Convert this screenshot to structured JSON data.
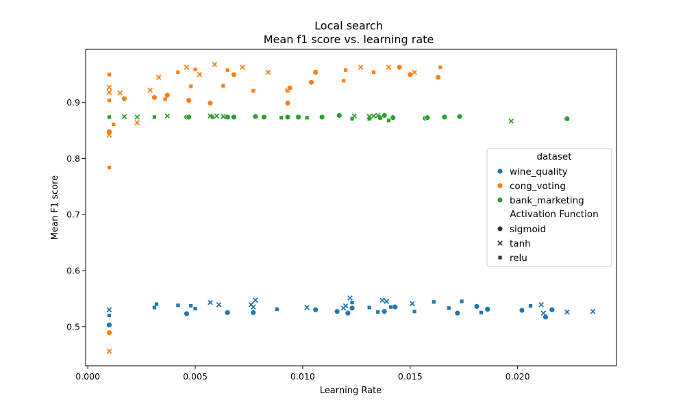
{
  "chart_data": {
    "type": "scatter",
    "title": "Local search",
    "subtitle": "Mean f1 score vs. learning rate",
    "xlabel": "Learning Rate",
    "ylabel": "Mean F1 score",
    "xlim": [
      -0.0001,
      0.0246
    ],
    "ylim": [
      0.43,
      0.995
    ],
    "xticks": [
      0.0,
      0.005,
      0.01,
      0.015,
      0.02
    ],
    "xtick_labels": [
      "0.000",
      "0.005",
      "0.010",
      "0.015",
      "0.020"
    ],
    "yticks": [
      0.5,
      0.6,
      0.7,
      0.8,
      0.9
    ],
    "ytick_labels": [
      "0.5",
      "0.6",
      "0.7",
      "0.8",
      "0.9"
    ],
    "grid": false,
    "legend": {
      "placement": "center-right",
      "hue_title": "dataset",
      "style_title": "Activation Function",
      "datasets": [
        {
          "name": "wine_quality",
          "color": "#1f77b4"
        },
        {
          "name": "cong_voting",
          "color": "#ff7f0e"
        },
        {
          "name": "bank_marketing",
          "color": "#2ca02c"
        }
      ],
      "markers": [
        {
          "name": "sigmoid",
          "shape": "circle"
        },
        {
          "name": "tanh",
          "shape": "x"
        },
        {
          "name": "relu",
          "shape": "square"
        }
      ]
    },
    "series": [
      {
        "dataset": "wine_quality",
        "activation": "sigmoid",
        "color": "#1f77b4",
        "points": [
          [
            0.001,
            0.503
          ],
          [
            0.0046,
            0.523
          ],
          [
            0.0065,
            0.525
          ],
          [
            0.0077,
            0.525
          ],
          [
            0.0106,
            0.53
          ],
          [
            0.0116,
            0.527
          ],
          [
            0.0121,
            0.524
          ],
          [
            0.0123,
            0.533
          ],
          [
            0.0138,
            0.527
          ],
          [
            0.0143,
            0.535
          ],
          [
            0.0172,
            0.524
          ],
          [
            0.0181,
            0.536
          ],
          [
            0.0186,
            0.531
          ],
          [
            0.0202,
            0.529
          ],
          [
            0.0213,
            0.517
          ],
          [
            0.0216,
            0.53
          ]
        ]
      },
      {
        "dataset": "wine_quality",
        "activation": "tanh",
        "color": "#1f77b4",
        "points": [
          [
            0.001,
            0.53
          ],
          [
            0.0057,
            0.543
          ],
          [
            0.0061,
            0.539
          ],
          [
            0.0076,
            0.539
          ],
          [
            0.0077,
            0.535
          ],
          [
            0.0078,
            0.547
          ],
          [
            0.0102,
            0.534
          ],
          [
            0.0119,
            0.533
          ],
          [
            0.012,
            0.537
          ],
          [
            0.0122,
            0.551
          ],
          [
            0.0137,
            0.547
          ],
          [
            0.0139,
            0.545
          ],
          [
            0.0151,
            0.541
          ],
          [
            0.0211,
            0.539
          ],
          [
            0.0212,
            0.524
          ],
          [
            0.0223,
            0.526
          ],
          [
            0.0235,
            0.527
          ]
        ]
      },
      {
        "dataset": "wine_quality",
        "activation": "relu",
        "color": "#1f77b4",
        "points": [
          [
            0.001,
            0.52
          ],
          [
            0.0031,
            0.534
          ],
          [
            0.0032,
            0.54
          ],
          [
            0.0042,
            0.538
          ],
          [
            0.0048,
            0.537
          ],
          [
            0.005,
            0.532
          ],
          [
            0.0088,
            0.531
          ],
          [
            0.0123,
            0.543
          ],
          [
            0.0131,
            0.534
          ],
          [
            0.0135,
            0.526
          ],
          [
            0.0141,
            0.535
          ],
          [
            0.0152,
            0.527
          ],
          [
            0.0161,
            0.544
          ],
          [
            0.0168,
            0.533
          ],
          [
            0.0174,
            0.545
          ],
          [
            0.0183,
            0.525
          ],
          [
            0.0206,
            0.537
          ]
        ]
      },
      {
        "dataset": "cong_voting",
        "activation": "sigmoid",
        "color": "#ff7f0e",
        "points": [
          [
            0.001,
            0.848
          ],
          [
            0.001,
            0.489
          ],
          [
            0.0017,
            0.907
          ],
          [
            0.0031,
            0.909
          ],
          [
            0.0037,
            0.913
          ],
          [
            0.0047,
            0.904
          ],
          [
            0.0057,
            0.899
          ],
          [
            0.0068,
            0.95
          ],
          [
            0.0093,
            0.922
          ],
          [
            0.0094,
            0.926
          ],
          [
            0.0093,
            0.899
          ],
          [
            0.0104,
            0.936
          ],
          [
            0.0106,
            0.954
          ],
          [
            0.0145,
            0.963
          ],
          [
            0.015,
            0.95
          ],
          [
            0.0163,
            0.945
          ]
        ]
      },
      {
        "dataset": "cong_voting",
        "activation": "tanh",
        "color": "#ff7f0e",
        "points": [
          [
            0.001,
            0.927
          ],
          [
            0.001,
            0.918
          ],
          [
            0.001,
            0.842
          ],
          [
            0.001,
            0.456
          ],
          [
            0.0015,
            0.917
          ],
          [
            0.0023,
            0.864
          ],
          [
            0.0029,
            0.922
          ],
          [
            0.0033,
            0.945
          ],
          [
            0.0046,
            0.963
          ],
          [
            0.0052,
            0.95
          ],
          [
            0.0059,
            0.968
          ],
          [
            0.0072,
            0.963
          ],
          [
            0.0084,
            0.954
          ],
          [
            0.0127,
            0.963
          ],
          [
            0.014,
            0.963
          ],
          [
            0.0152,
            0.954
          ]
        ]
      },
      {
        "dataset": "cong_voting",
        "activation": "relu",
        "color": "#ff7f0e",
        "points": [
          [
            0.001,
            0.95
          ],
          [
            0.001,
            0.904
          ],
          [
            0.001,
            0.784
          ],
          [
            0.0012,
            0.861
          ],
          [
            0.0036,
            0.906
          ],
          [
            0.0042,
            0.954
          ],
          [
            0.0048,
            0.929
          ],
          [
            0.005,
            0.959
          ],
          [
            0.0063,
            0.93
          ],
          [
            0.0065,
            0.958
          ],
          [
            0.0077,
            0.921
          ],
          [
            0.0119,
            0.939
          ],
          [
            0.012,
            0.958
          ],
          [
            0.0133,
            0.954
          ],
          [
            0.0164,
            0.963
          ]
        ]
      },
      {
        "dataset": "bank_marketing",
        "activation": "sigmoid",
        "color": "#2ca02c",
        "points": [
          [
            0.0046,
            0.874
          ],
          [
            0.0047,
            0.874
          ],
          [
            0.0065,
            0.874
          ],
          [
            0.0068,
            0.874
          ],
          [
            0.0078,
            0.875
          ],
          [
            0.0082,
            0.874
          ],
          [
            0.0093,
            0.874
          ],
          [
            0.0098,
            0.874
          ],
          [
            0.0109,
            0.874
          ],
          [
            0.0117,
            0.877
          ],
          [
            0.0136,
            0.873
          ],
          [
            0.0138,
            0.877
          ],
          [
            0.0142,
            0.873
          ],
          [
            0.0157,
            0.872
          ],
          [
            0.0158,
            0.873
          ],
          [
            0.0166,
            0.874
          ],
          [
            0.0173,
            0.875
          ],
          [
            0.0223,
            0.871
          ]
        ]
      },
      {
        "dataset": "bank_marketing",
        "activation": "tanh",
        "color": "#2ca02c",
        "points": [
          [
            0.0017,
            0.875
          ],
          [
            0.0023,
            0.874
          ],
          [
            0.0037,
            0.876
          ],
          [
            0.0057,
            0.876
          ],
          [
            0.006,
            0.876
          ],
          [
            0.0063,
            0.875
          ],
          [
            0.0124,
            0.876
          ],
          [
            0.0131,
            0.875
          ],
          [
            0.0133,
            0.876
          ],
          [
            0.0135,
            0.877
          ],
          [
            0.0197,
            0.867
          ]
        ]
      },
      {
        "dataset": "bank_marketing",
        "activation": "relu",
        "color": "#2ca02c",
        "points": [
          [
            0.001,
            0.874
          ],
          [
            0.0031,
            0.874
          ],
          [
            0.0058,
            0.874
          ],
          [
            0.009,
            0.873
          ],
          [
            0.0102,
            0.873
          ],
          [
            0.0123,
            0.871
          ],
          [
            0.0131,
            0.871
          ],
          [
            0.014,
            0.868
          ]
        ]
      }
    ]
  }
}
